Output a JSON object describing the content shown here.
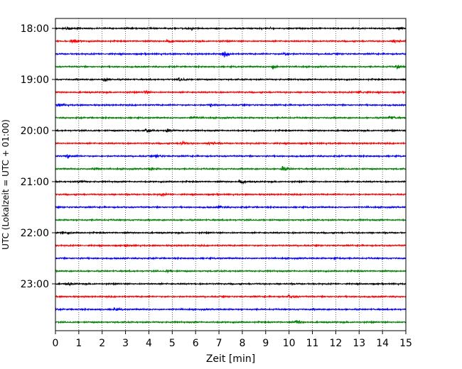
{
  "chart_data": {
    "type": "line",
    "title": "",
    "xlabel": "Zeit  [min]",
    "ylabel": "UTC (Lokalzeit = UTC + 01:00)",
    "xlim": [
      0,
      15
    ],
    "x_ticks": [
      0,
      1,
      2,
      3,
      4,
      5,
      6,
      7,
      8,
      9,
      10,
      11,
      12,
      13,
      14,
      15
    ],
    "x_tick_labels": [
      "0",
      "1",
      "2",
      "3",
      "4",
      "5",
      "6",
      "7",
      "8",
      "9",
      "10",
      "11",
      "12",
      "13",
      "14",
      "15"
    ],
    "y_tick_labels": [
      "18:00",
      "19:00",
      "20:00",
      "21:00",
      "22:00",
      "23:00"
    ],
    "trace_minutes": 15,
    "trace_colors": [
      "#000000",
      "#ff0000",
      "#0000ff",
      "#008000"
    ],
    "trace_start_times": [
      "18:00",
      "18:15",
      "18:30",
      "18:45",
      "19:00",
      "19:15",
      "19:30",
      "19:45",
      "20:00",
      "20:15",
      "20:30",
      "20:45",
      "21:00",
      "21:15",
      "21:30",
      "21:45",
      "22:00",
      "22:15",
      "22:30",
      "22:45",
      "23:00",
      "23:15",
      "23:30",
      "23:45"
    ],
    "bursts": [
      [
        [
          0.5,
          1.5
        ],
        [
          5.8,
          1.5
        ],
        [
          14.7,
          1.3
        ]
      ],
      [
        [
          0.7,
          1.5
        ],
        [
          4.8,
          1.3
        ],
        [
          14.5,
          2.0
        ]
      ],
      [
        [
          7.2,
          2.5
        ],
        [
          9.8,
          1.8
        ]
      ],
      [
        [
          9.3,
          2.2
        ],
        [
          14.6,
          2.2
        ]
      ],
      [
        [
          2.1,
          2.0
        ],
        [
          5.3,
          1.5
        ]
      ],
      [
        [
          3.8,
          1.3
        ],
        [
          13.0,
          2.0
        ]
      ],
      [
        [
          0.1,
          1.5
        ],
        [
          6.6,
          1.3
        ]
      ],
      [
        [
          5.8,
          2.0
        ],
        [
          14.3,
          2.0
        ]
      ],
      [
        [
          3.9,
          2.0
        ],
        [
          4.8,
          1.6
        ]
      ],
      [
        [
          5.4,
          2.0
        ],
        [
          6.6,
          2.2
        ]
      ],
      [
        [
          0.5,
          1.5
        ],
        [
          4.3,
          1.3
        ]
      ],
      [
        [
          1.6,
          2.0
        ],
        [
          9.7,
          2.0
        ],
        [
          4.0,
          1.0
        ]
      ],
      [
        [
          7.9,
          2.2
        ],
        [
          1.0,
          1.3
        ]
      ],
      [
        [
          4.5,
          1.2
        ]
      ],
      [
        [
          7.0,
          1.2
        ]
      ],
      [],
      [
        [
          0.3,
          1.0
        ]
      ],
      [
        [
          3.0,
          1.0
        ]
      ],
      [
        [
          12.0,
          1.0
        ]
      ],
      [
        [
          4.8,
          1.0
        ]
      ],
      [
        [
          0.5,
          1.0
        ]
      ],
      [
        [
          10.0,
          1.5
        ]
      ],
      [
        [
          2.5,
          1.5
        ]
      ],
      [
        [
          10.3,
          1.5
        ]
      ]
    ]
  }
}
